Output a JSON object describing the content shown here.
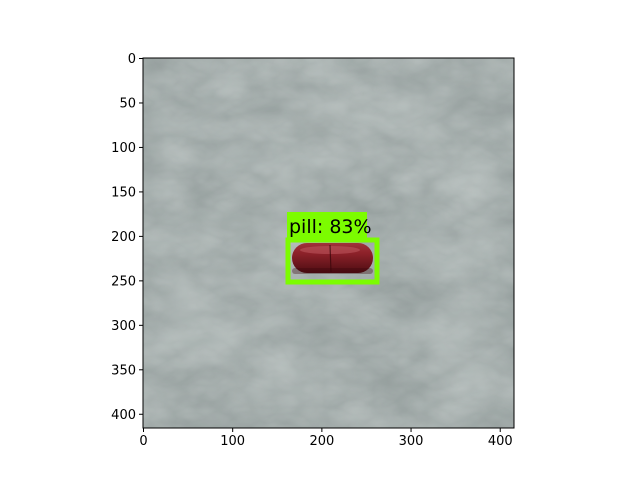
{
  "image": {
    "subject": "red capsule on crumpled gray plastic sheet",
    "background_color": "#8e9897",
    "pill_color": "#7a1a22"
  },
  "axes": {
    "x_range": [
      0,
      416
    ],
    "y_range": [
      0,
      416
    ],
    "x_ticks": [
      "0",
      "100",
      "200",
      "300",
      "400"
    ],
    "y_ticks": [
      "0",
      "50",
      "100",
      "150",
      "200",
      "250",
      "300",
      "350",
      "400"
    ]
  },
  "detection": {
    "label": "pill: 83%",
    "class": "pill",
    "score": 0.83,
    "box_color": "#7cfc00",
    "box": {
      "x_min": 162,
      "y_min": 203,
      "x_max": 263,
      "y_max": 252
    }
  }
}
